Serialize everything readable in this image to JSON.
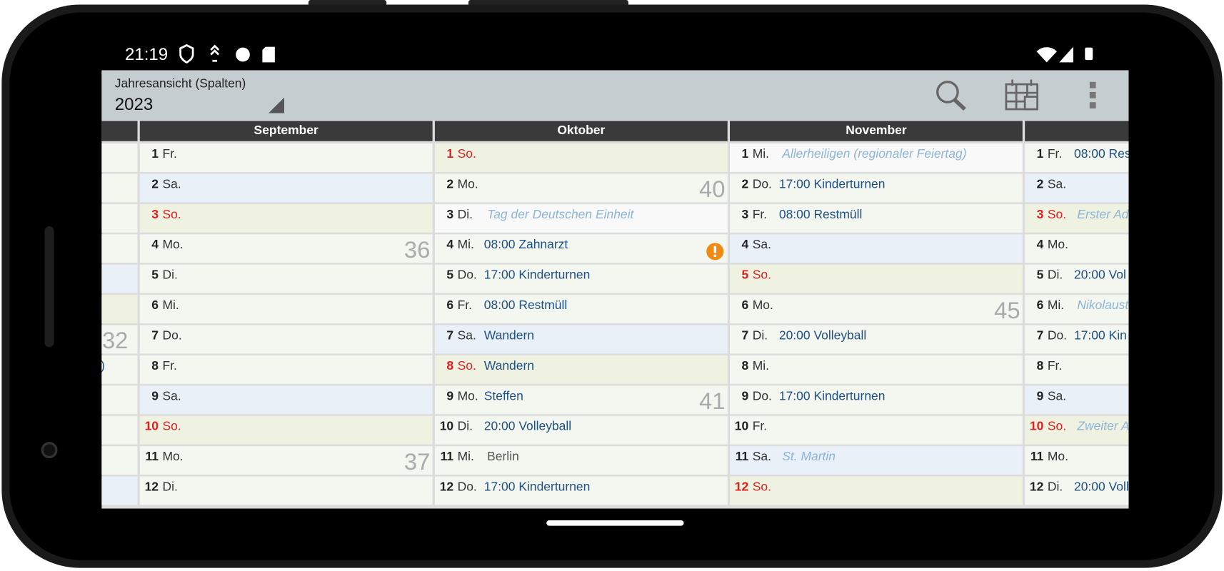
{
  "status_bar": {
    "time": "21:19"
  },
  "toolbar": {
    "title": "Jahresansicht (Spalten)",
    "year": "2023"
  },
  "left_fragment": {
    "week": "32",
    "text": ")",
    "kinds": [
      "weekday",
      "weekday",
      "weekday",
      "weekday",
      "sat",
      "sun",
      "weekday",
      "weekday",
      "weekday",
      "weekday",
      "weekday",
      "sat"
    ]
  },
  "columns": [
    {
      "header": "September",
      "days": [
        {
          "day": "1",
          "weekday": "Fr.",
          "kind": "weekday"
        },
        {
          "day": "2",
          "weekday": "Sa.",
          "kind": "sat"
        },
        {
          "day": "3",
          "weekday": "So.",
          "kind": "sun"
        },
        {
          "day": "4",
          "weekday": "Mo.",
          "kind": "weekday",
          "week": "36"
        },
        {
          "day": "5",
          "weekday": "Di.",
          "kind": "weekday"
        },
        {
          "day": "6",
          "weekday": "Mi.",
          "kind": "weekday"
        },
        {
          "day": "7",
          "weekday": "Do.",
          "kind": "weekday"
        },
        {
          "day": "8",
          "weekday": "Fr.",
          "kind": "weekday"
        },
        {
          "day": "9",
          "weekday": "Sa.",
          "kind": "sat"
        },
        {
          "day": "10",
          "weekday": "So.",
          "kind": "sun"
        },
        {
          "day": "11",
          "weekday": "Mo.",
          "kind": "weekday",
          "week": "37"
        },
        {
          "day": "12",
          "weekday": "Di.",
          "kind": "weekday"
        }
      ]
    },
    {
      "header": "Oktober",
      "days": [
        {
          "day": "1",
          "weekday": "So.",
          "kind": "sun"
        },
        {
          "day": "2",
          "weekday": "Mo.",
          "kind": "weekday",
          "week": "40"
        },
        {
          "day": "3",
          "weekday": "Di.",
          "kind": "holiday",
          "event": "Tag der Deutschen Einheit",
          "event_style": "holiday"
        },
        {
          "day": "4",
          "weekday": "Mi.",
          "kind": "weekday",
          "event": "08:00 Zahnarzt",
          "event_style": "normal",
          "alert": true
        },
        {
          "day": "5",
          "weekday": "Do.",
          "kind": "weekday",
          "event": "17:00 Kinderturnen",
          "event_style": "normal"
        },
        {
          "day": "6",
          "weekday": "Fr.",
          "kind": "weekday",
          "event": "08:00 Restmüll",
          "event_style": "normal"
        },
        {
          "day": "7",
          "weekday": "Sa.",
          "kind": "sat",
          "event": "Wandern",
          "event_style": "normal"
        },
        {
          "day": "8",
          "weekday": "So.",
          "kind": "sun",
          "event": "Wandern",
          "event_style": "normal"
        },
        {
          "day": "9",
          "weekday": "Mo.",
          "kind": "weekday",
          "event": "Steffen",
          "event_style": "normal",
          "week": "41"
        },
        {
          "day": "10",
          "weekday": "Di.",
          "kind": "weekday",
          "event": "20:00 Volleyball",
          "event_style": "normal"
        },
        {
          "day": "11",
          "weekday": "Mi.",
          "kind": "weekday",
          "event": "Berlin",
          "event_style": "plain"
        },
        {
          "day": "12",
          "weekday": "Do.",
          "kind": "weekday",
          "event": "17:00 Kinderturnen",
          "event_style": "normal"
        }
      ]
    },
    {
      "header": "November",
      "days": [
        {
          "day": "1",
          "weekday": "Mi.",
          "kind": "holiday",
          "event": "Allerheiligen (regionaler Feiertag)",
          "event_style": "holiday"
        },
        {
          "day": "2",
          "weekday": "Do.",
          "kind": "weekday",
          "event": "17:00 Kinderturnen",
          "event_style": "normal"
        },
        {
          "day": "3",
          "weekday": "Fr.",
          "kind": "weekday",
          "event": "08:00 Restmüll",
          "event_style": "normal"
        },
        {
          "day": "4",
          "weekday": "Sa.",
          "kind": "sat"
        },
        {
          "day": "5",
          "weekday": "So.",
          "kind": "sun"
        },
        {
          "day": "6",
          "weekday": "Mo.",
          "kind": "weekday",
          "week": "45"
        },
        {
          "day": "7",
          "weekday": "Di.",
          "kind": "weekday",
          "event": "20:00 Volleyball",
          "event_style": "normal"
        },
        {
          "day": "8",
          "weekday": "Mi.",
          "kind": "weekday"
        },
        {
          "day": "9",
          "weekday": "Do.",
          "kind": "weekday",
          "event": "17:00 Kinderturnen",
          "event_style": "normal"
        },
        {
          "day": "10",
          "weekday": "Fr.",
          "kind": "weekday"
        },
        {
          "day": "11",
          "weekday": "Sa.",
          "kind": "sat",
          "event": "St. Martin",
          "event_style": "holiday"
        },
        {
          "day": "12",
          "weekday": "So.",
          "kind": "sun"
        }
      ]
    },
    {
      "days": [
        {
          "day": "1",
          "weekday": "Fr.",
          "kind": "weekday",
          "event": "08:00 Res",
          "event_style": "normal"
        },
        {
          "day": "2",
          "weekday": "Sa.",
          "kind": "sat"
        },
        {
          "day": "3",
          "weekday": "So.",
          "kind": "sun",
          "event": "Erster Ad",
          "event_style": "holiday"
        },
        {
          "day": "4",
          "weekday": "Mo.",
          "kind": "weekday"
        },
        {
          "day": "5",
          "weekday": "Di.",
          "kind": "weekday",
          "event": "20:00 Vol",
          "event_style": "normal"
        },
        {
          "day": "6",
          "weekday": "Mi.",
          "kind": "weekday",
          "event": "Nikolaust",
          "event_style": "holiday"
        },
        {
          "day": "7",
          "weekday": "Do.",
          "kind": "weekday",
          "event": "17:00 Kin",
          "event_style": "normal"
        },
        {
          "day": "8",
          "weekday": "Fr.",
          "kind": "weekday"
        },
        {
          "day": "9",
          "weekday": "Sa.",
          "kind": "sat"
        },
        {
          "day": "10",
          "weekday": "So.",
          "kind": "sun",
          "event": "Zweiter A",
          "event_style": "holiday"
        },
        {
          "day": "11",
          "weekday": "Mo.",
          "kind": "weekday"
        },
        {
          "day": "12",
          "weekday": "Di.",
          "kind": "weekday",
          "event": "20:00 Voll",
          "event_style": "normal"
        }
      ]
    }
  ]
}
